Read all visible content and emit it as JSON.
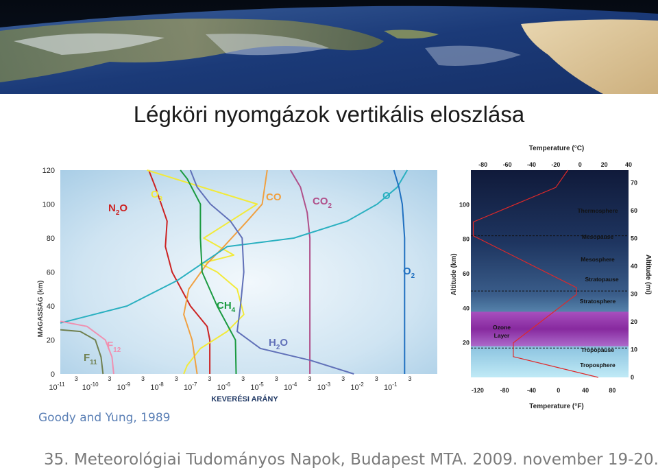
{
  "page": {
    "title": "Légköri nyomgázok vertikális eloszlása",
    "citation": "Goody and Yung, 1989",
    "footer": "35. Meteorológiai Tudományos Napok, Budapest MTA. 2009. november 19-20."
  },
  "chart_data": [
    {
      "type": "line",
      "xlabel": "KEVERÉSI ARÁNY",
      "ylabel": "MAGASSÁG (km)",
      "x_scale": "log",
      "x_ticks": [
        "10^-11",
        "10^-10",
        "10^-9",
        "10^-8",
        "10^-7",
        "10^-6",
        "10^-5",
        "10^-4",
        "10^-3",
        "10^-2",
        "10^-1"
      ],
      "x_minor_label": "3",
      "y_ticks": [
        0,
        20,
        40,
        60,
        80,
        100,
        120
      ],
      "ylim": [
        0,
        120
      ],
      "xlim_log10": [
        -11,
        0.3
      ],
      "grid": false,
      "colors": {
        "N2O": "#cc2222",
        "O3": "#f2ea3a",
        "CO": "#f0a040",
        "CO2": "#b0508a",
        "O": "#2ab0c0",
        "O2": "#2070c0",
        "CH4": "#1a9a40",
        "H2O": "#6070b8",
        "F12": "#f090b0",
        "F11": "#708050"
      },
      "series": [
        {
          "name": "N2O",
          "label_main": "N",
          "label_sub": "2",
          "label_tail": "O",
          "points": [
            [
              -6.52,
              0
            ],
            [
              -6.52,
              20
            ],
            [
              -6.6,
              28
            ],
            [
              -7.1,
              40
            ],
            [
              -7.65,
              60
            ],
            [
              -7.85,
              75
            ],
            [
              -7.8,
              90
            ],
            [
              -8.15,
              110
            ],
            [
              -8.35,
              120
            ]
          ]
        },
        {
          "name": "O3",
          "label_main": "O",
          "label_sub": "3",
          "label_tail": "",
          "points": [
            [
              -7.3,
              0
            ],
            [
              -7.2,
              5
            ],
            [
              -6.8,
              15
            ],
            [
              -6.0,
              25
            ],
            [
              -5.5,
              35
            ],
            [
              -5.7,
              50
            ],
            [
              -6.3,
              60
            ],
            [
              -6.8,
              65
            ],
            [
              -5.8,
              70
            ],
            [
              -6.7,
              80
            ],
            [
              -5.9,
              90
            ],
            [
              -5.1,
              100
            ],
            [
              -8.4,
              120
            ]
          ]
        },
        {
          "name": "CO",
          "label_main": "CO",
          "label_sub": "",
          "label_tail": "",
          "points": [
            [
              -6.9,
              0
            ],
            [
              -7.05,
              20
            ],
            [
              -7.3,
              35
            ],
            [
              -7.15,
              50
            ],
            [
              -6.6,
              65
            ],
            [
              -6.1,
              75
            ],
            [
              -5.4,
              90
            ],
            [
              -4.95,
              100
            ],
            [
              -4.8,
              120
            ]
          ]
        },
        {
          "name": "CO2",
          "label_main": "CO",
          "label_sub": "2",
          "label_tail": "",
          "points": [
            [
              -3.52,
              0
            ],
            [
              -3.52,
              80
            ],
            [
              -3.6,
              95
            ],
            [
              -3.8,
              110
            ],
            [
              -4.1,
              120
            ]
          ]
        },
        {
          "name": "O",
          "label_main": "O",
          "label_sub": "",
          "label_tail": "",
          "points": [
            [
              -11,
              30
            ],
            [
              -9,
              40
            ],
            [
              -7.5,
              55
            ],
            [
              -6.0,
              75
            ],
            [
              -4.0,
              80
            ],
            [
              -2.4,
              90
            ],
            [
              -1.5,
              100
            ],
            [
              -0.9,
              110
            ],
            [
              -0.6,
              120
            ]
          ]
        },
        {
          "name": "O2",
          "label_main": "O",
          "label_sub": "2",
          "label_tail": "",
          "points": [
            [
              -0.68,
              0
            ],
            [
              -0.68,
              80
            ],
            [
              -0.75,
              100
            ],
            [
              -0.85,
              110
            ],
            [
              -1.0,
              120
            ]
          ]
        },
        {
          "name": "CH4",
          "label_main": "CH",
          "label_sub": "4",
          "label_tail": "",
          "points": [
            [
              -5.73,
              0
            ],
            [
              -5.75,
              20
            ],
            [
              -6.3,
              40
            ],
            [
              -6.75,
              60
            ],
            [
              -6.8,
              80
            ],
            [
              -6.8,
              100
            ],
            [
              -7.2,
              115
            ],
            [
              -7.4,
              120
            ]
          ]
        },
        {
          "name": "H2O",
          "label_main": "H",
          "label_sub": "2",
          "label_tail": "O",
          "points": [
            [
              -2.2,
              0
            ],
            [
              -3.5,
              8
            ],
            [
              -5.0,
              15
            ],
            [
              -5.7,
              25
            ],
            [
              -5.6,
              40
            ],
            [
              -5.5,
              60
            ],
            [
              -5.55,
              80
            ],
            [
              -5.9,
              90
            ],
            [
              -6.5,
              100
            ],
            [
              -6.9,
              110
            ],
            [
              -7.1,
              120
            ]
          ]
        },
        {
          "name": "F12",
          "label_main": "F",
          "label_sub": "12",
          "label_tail": "",
          "points": [
            [
              -9.4,
              0
            ],
            [
              -9.45,
              10
            ],
            [
              -9.65,
              20
            ],
            [
              -10.2,
              28
            ],
            [
              -11,
              31
            ]
          ]
        },
        {
          "name": "F11",
          "label_main": "F",
          "label_sub": "11",
          "label_tail": "",
          "points": [
            [
              -9.72,
              0
            ],
            [
              -9.78,
              10
            ],
            [
              -9.95,
              20
            ],
            [
              -10.4,
              25
            ],
            [
              -11,
              26
            ]
          ]
        }
      ]
    },
    {
      "type": "line",
      "top_axis_title": "Temperature (°C)",
      "bottom_axis_title": "Temperature (°F)",
      "left_axis_title": "Altitude (km)",
      "right_axis_title": "Altitude (mi)",
      "top_ticks_c": [
        "-80",
        "-60",
        "-40",
        "-20",
        "0",
        "20",
        "40"
      ],
      "bottom_ticks_f": [
        "-120",
        "-80",
        "-40",
        "0",
        "40",
        "80"
      ],
      "left_ticks_km": [
        "100",
        "80",
        "60",
        "40",
        "20"
      ],
      "right_ticks_mi": [
        "70",
        "60",
        "50",
        "40",
        "30",
        "20",
        "10",
        "0"
      ],
      "ylim_km": [
        0,
        120
      ],
      "xlim_c": [
        -90,
        40
      ],
      "temperature_profile_c_km": [
        [
          15,
          0
        ],
        [
          -55,
          12
        ],
        [
          -55,
          20
        ],
        [
          -3,
          48
        ],
        [
          -3,
          52
        ],
        [
          -88,
          82
        ],
        [
          -88,
          90
        ],
        [
          -20,
          110
        ],
        [
          -10,
          120
        ]
      ],
      "layer_boundaries_km": {
        "Mesopause": 82,
        "Stratopause": 50,
        "Tropopause": 17
      },
      "ozone_layer_km": [
        18,
        38
      ],
      "labels": {
        "thermosphere": "Thermosphere",
        "mesopause": "Mesopause",
        "mesosphere": "Mesosphere",
        "stratopause": "Stratopause",
        "stratosphere": "Stratosphere",
        "ozone": "Ozone Layer",
        "tropopause": "Tropopause",
        "troposphere": "Troposphere"
      }
    }
  ]
}
